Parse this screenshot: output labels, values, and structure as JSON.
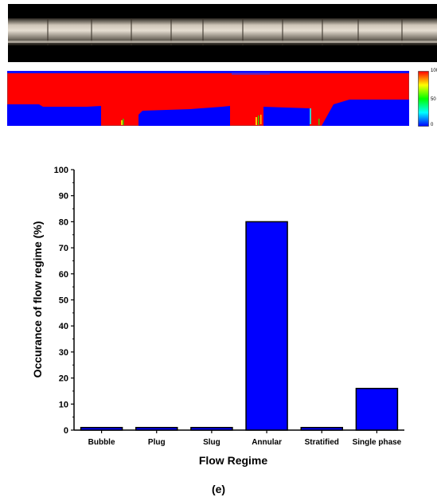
{
  "figure": {
    "caption": "(e)"
  },
  "colorbar": {
    "ticks": [
      "100",
      "50",
      "0"
    ],
    "colors": [
      "#ff0000",
      "#ffff00",
      "#00ff00",
      "#00ffff",
      "#0000ff"
    ]
  },
  "chart_data": {
    "type": "bar",
    "title": "",
    "xlabel": "Flow Regime",
    "ylabel": "Occurance of flow regime (%)",
    "categories": [
      "Bubble",
      "Plug",
      "Slug",
      "Annular",
      "Stratified",
      "Single phase"
    ],
    "values": [
      1,
      1,
      1,
      80,
      1,
      16
    ],
    "ylim": [
      0,
      100
    ],
    "yticks": [
      "0",
      "10",
      "20",
      "30",
      "40",
      "50",
      "60",
      "70",
      "80",
      "90",
      "100"
    ],
    "bar_color": "#0000ff",
    "grid": false
  }
}
